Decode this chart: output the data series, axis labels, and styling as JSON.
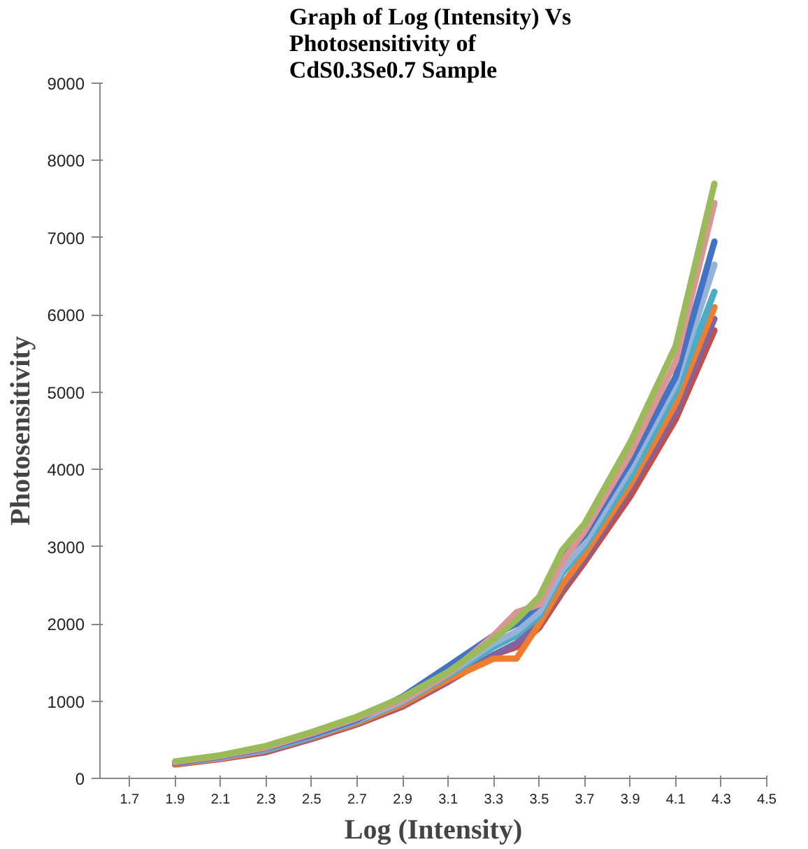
{
  "chart_data": {
    "type": "line",
    "title": "Graph  of Log (Intensity) Vs\nPhotosensitivity  of\nCdS0.3Se0.7 Sample",
    "xlabel": "Log (Intensity)",
    "ylabel": "Photosensitivity",
    "x": [
      1.9,
      2.1,
      2.3,
      2.5,
      2.7,
      2.9,
      3.1,
      3.3,
      3.4,
      3.5,
      3.6,
      3.7,
      3.9,
      4.1,
      4.27
    ],
    "xlim": [
      1.57,
      4.5
    ],
    "xticks": [
      1.7,
      1.9,
      2.1,
      2.3,
      2.5,
      2.7,
      2.9,
      3.1,
      3.3,
      3.5,
      3.7,
      3.9,
      4.1,
      4.3,
      4.5
    ],
    "ylim": [
      0,
      9000
    ],
    "yticks": [
      0,
      1000,
      2000,
      3000,
      4000,
      5000,
      6000,
      7000,
      8000,
      9000
    ],
    "grid": false,
    "marker": "none",
    "line_style": "solid",
    "series": [
      {
        "color": "#c0504d",
        "values": [
          180,
          250,
          340,
          510,
          700,
          930,
          1250,
          1600,
          1700,
          1950,
          2400,
          2800,
          3650,
          4650,
          5800
        ]
      },
      {
        "color": "#8064a2",
        "values": [
          190,
          260,
          350,
          520,
          710,
          950,
          1260,
          1600,
          1750,
          2000,
          2450,
          2850,
          3750,
          4750,
          5950
        ]
      },
      {
        "color": "#ed7d31",
        "values": [
          190,
          260,
          360,
          530,
          720,
          960,
          1280,
          1550,
          1550,
          2000,
          2500,
          2900,
          3800,
          4850,
          6100
        ]
      },
      {
        "color": "#4bacc6",
        "values": [
          200,
          270,
          370,
          540,
          740,
          990,
          1330,
          1700,
          1850,
          2100,
          2650,
          3000,
          3900,
          5000,
          6300
        ]
      },
      {
        "color": "#95b3d7",
        "values": [
          200,
          270,
          380,
          550,
          750,
          1000,
          1350,
          1750,
          1900,
          2150,
          2700,
          3050,
          4000,
          5100,
          6650
        ]
      },
      {
        "color": "#4472c4",
        "values": [
          200,
          280,
          390,
          560,
          760,
          1060,
          1450,
          1850,
          2000,
          2250,
          2850,
          3150,
          4100,
          5200,
          6950
        ]
      },
      {
        "color": "#d99694",
        "values": [
          210,
          290,
          400,
          580,
          780,
          1020,
          1350,
          1850,
          2150,
          2250,
          2800,
          3200,
          4200,
          5400,
          7450
        ]
      },
      {
        "color": "#9bbb59",
        "values": [
          220,
          300,
          420,
          600,
          800,
          1050,
          1380,
          1800,
          2050,
          2350,
          2950,
          3300,
          4350,
          5600,
          7700
        ]
      }
    ]
  }
}
